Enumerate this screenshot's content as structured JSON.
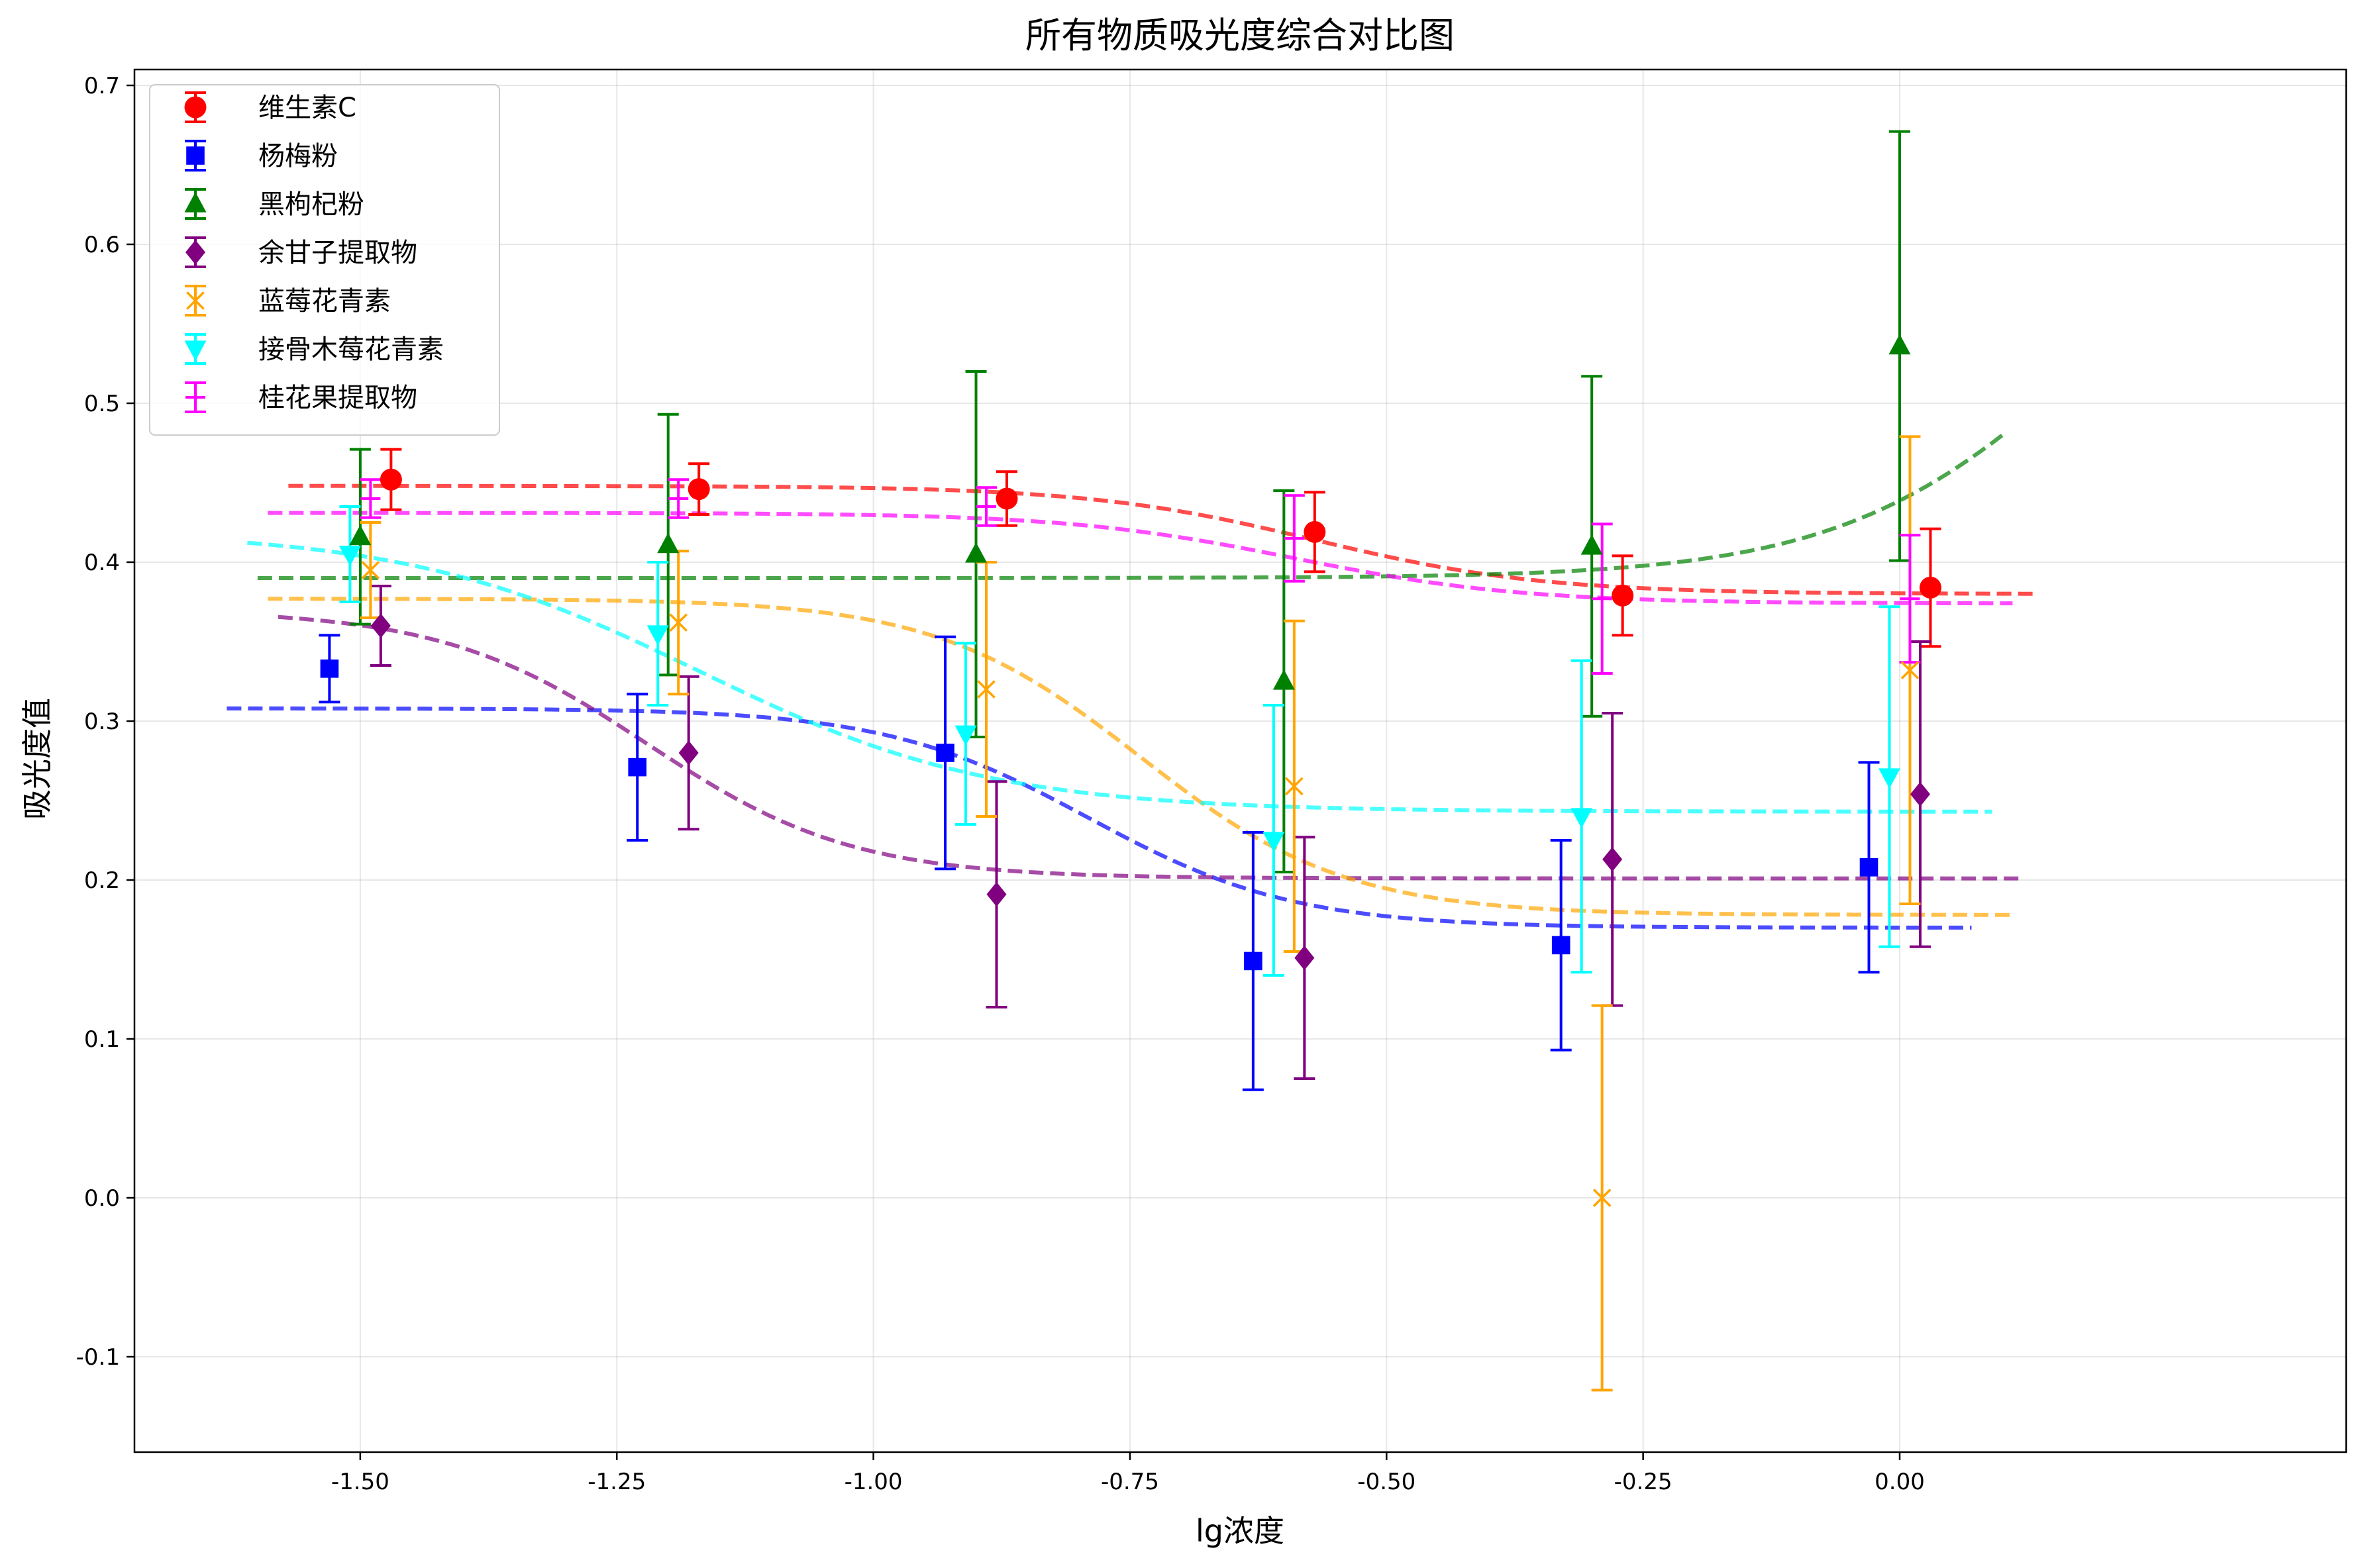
{
  "chart_data": {
    "type": "scatter",
    "title": "所有物质吸光度综合对比图",
    "xlabel": "lg浓度",
    "ylabel": "吸光度值",
    "xlim": [
      -1.72,
      0.435
    ],
    "ylim": [
      -0.16,
      0.71
    ],
    "xticks": [
      -1.5,
      -1.25,
      -1.0,
      -0.75,
      -0.5,
      -0.25,
      0.0
    ],
    "xtick_labels": [
      "-1.50",
      "-1.25",
      "-1.00",
      "-0.75",
      "-0.50",
      "-0.25",
      "0.00"
    ],
    "yticks": [
      -0.1,
      0.0,
      0.1,
      0.2,
      0.3,
      0.4,
      0.5,
      0.6,
      0.7
    ],
    "ytick_labels": [
      "-0.1",
      "0.0",
      "0.1",
      "0.2",
      "0.3",
      "0.4",
      "0.5",
      "0.6",
      "0.7"
    ],
    "grid": true,
    "legend_position": "top-left",
    "series": [
      {
        "name": "维生素C",
        "color": "#ff0000",
        "marker": "circle",
        "x": [
          -1.47,
          -1.17,
          -0.87,
          -0.57,
          -0.27,
          0.03
        ],
        "y": [
          0.452,
          0.446,
          0.44,
          0.419,
          0.379,
          0.384
        ],
        "yerr": [
          0.019,
          0.016,
          0.017,
          0.025,
          0.025,
          0.037
        ],
        "fit": {
          "bottom": 0.38,
          "top": 0.448,
          "x0": -0.57,
          "slope": 9
        }
      },
      {
        "name": "杨梅粉",
        "color": "#0000ff",
        "marker": "square",
        "x": [
          -1.53,
          -1.23,
          -0.93,
          -0.63,
          -0.33,
          -0.03
        ],
        "y": [
          0.333,
          0.271,
          0.28,
          0.149,
          0.159,
          0.208
        ],
        "yerr": [
          0.021,
          0.046,
          0.073,
          0.081,
          0.066,
          0.066
        ],
        "fit": {
          "bottom": 0.17,
          "top": 0.308,
          "x0": -0.79,
          "slope": 10
        }
      },
      {
        "name": "黑枸杞粉",
        "color": "#008000",
        "marker": "triangle-up",
        "x": [
          -1.5,
          -1.2,
          -0.9,
          -0.6,
          -0.3,
          0.0
        ],
        "y": [
          0.416,
          0.411,
          0.405,
          0.325,
          0.41,
          0.536
        ],
        "yerr": [
          0.055,
          0.082,
          0.115,
          0.12,
          0.107,
          0.135
        ],
        "fit": {
          "bottom": 0.39,
          "top": 0.68,
          "x0": 0.2,
          "slope": -8
        }
      },
      {
        "name": "余甘子提取物",
        "color": "#800080",
        "marker": "diamond",
        "x": [
          -1.48,
          -1.18,
          -0.88,
          -0.58,
          -0.28,
          0.02
        ],
        "y": [
          0.36,
          0.28,
          0.191,
          0.151,
          0.213,
          0.254
        ],
        "yerr": [
          0.025,
          0.048,
          0.071,
          0.076,
          0.092,
          0.096
        ],
        "fit": {
          "bottom": 0.201,
          "top": 0.37,
          "x0": -1.22,
          "slope": 10
        }
      },
      {
        "name": "蓝莓花青素",
        "color": "#ffa500",
        "marker": "x",
        "x": [
          -1.49,
          -1.19,
          -0.89,
          -0.59,
          -0.29,
          0.01
        ],
        "y": [
          0.395,
          0.362,
          0.32,
          0.259,
          0.0,
          0.332
        ],
        "yerr": [
          0.03,
          0.045,
          0.08,
          0.104,
          0.121,
          0.147
        ],
        "fit": {
          "bottom": 0.178,
          "top": 0.377,
          "x0": -0.74,
          "slope": 10
        }
      },
      {
        "name": "接骨木莓花青素",
        "color": "#00ffff",
        "marker": "triangle-down",
        "x": [
          -1.51,
          -1.21,
          -0.91,
          -0.61,
          -0.31,
          -0.01
        ],
        "y": [
          0.405,
          0.355,
          0.292,
          0.225,
          0.24,
          0.265
        ],
        "yerr": [
          0.03,
          0.045,
          0.057,
          0.085,
          0.098,
          0.107
        ],
        "fit": {
          "bottom": 0.243,
          "top": 0.42,
          "x0": -1.17,
          "slope": 7
        }
      },
      {
        "name": "桂花果提取物",
        "color": "#ff00ff",
        "marker": "hline",
        "x": [
          -1.49,
          -1.19,
          -0.89,
          -0.59,
          -0.29,
          0.01
        ],
        "y": [
          0.44,
          0.44,
          0.435,
          0.415,
          0.377,
          0.377
        ],
        "yerr": [
          0.012,
          0.012,
          0.012,
          0.027,
          0.047,
          0.04
        ],
        "fit": {
          "bottom": 0.374,
          "top": 0.431,
          "x0": -0.59,
          "slope": 9
        }
      }
    ]
  }
}
